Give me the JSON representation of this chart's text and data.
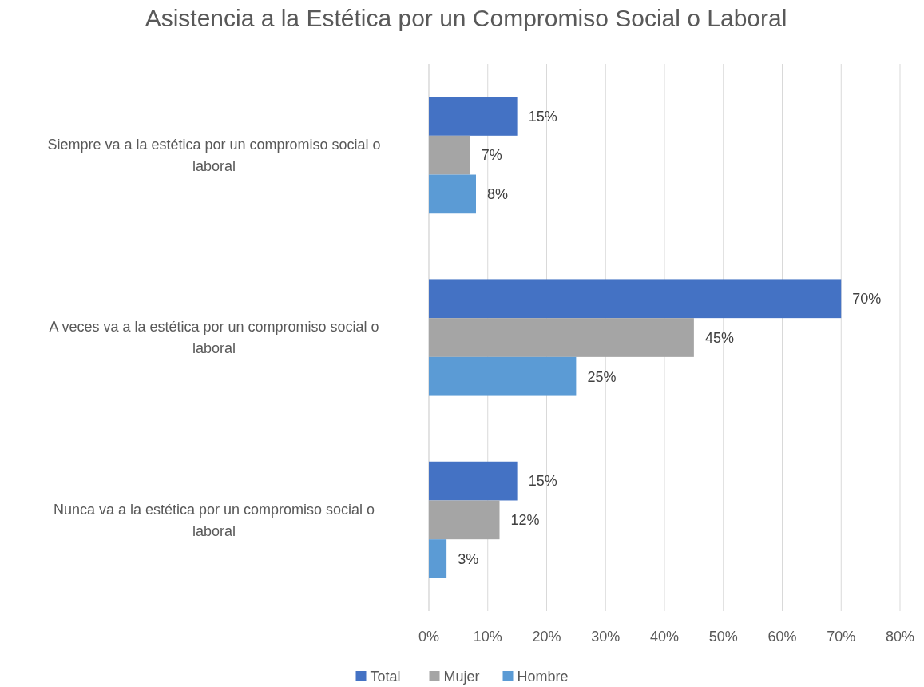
{
  "chart_data": {
    "type": "bar",
    "orientation": "horizontal",
    "title": "Asistencia a la Estética por un Compromiso Social o Laboral",
    "categories": [
      "Siempre va a la estética por un compromiso social o laboral",
      "A veces va a la estética por un compromiso social o laboral",
      "Nunca va a la estética por un compromiso social o laboral"
    ],
    "series": [
      {
        "name": "Total",
        "color": "#4472c4",
        "values": [
          15,
          70,
          15
        ],
        "value_labels": [
          "15%",
          "70%",
          "15%"
        ]
      },
      {
        "name": "Mujer",
        "color": "#a5a5a5",
        "values": [
          7,
          45,
          12
        ],
        "value_labels": [
          "7%",
          "45%",
          "12%"
        ]
      },
      {
        "name": "Hombre",
        "color": "#5b9bd5",
        "values": [
          8,
          25,
          3
        ],
        "value_labels": [
          "8%",
          "25%",
          "3%"
        ]
      }
    ],
    "xlim": [
      0,
      80
    ],
    "xticks": [
      {
        "value": 0,
        "label": "0%"
      },
      {
        "value": 10,
        "label": "10%"
      },
      {
        "value": 20,
        "label": "20%"
      },
      {
        "value": 30,
        "label": "30%"
      },
      {
        "value": 40,
        "label": "40%"
      },
      {
        "value": 50,
        "label": "50%"
      },
      {
        "value": 60,
        "label": "60%"
      },
      {
        "value": 70,
        "label": "70%"
      },
      {
        "value": 80,
        "label": "80%"
      }
    ],
    "grid": "x",
    "legend": "bottom"
  }
}
